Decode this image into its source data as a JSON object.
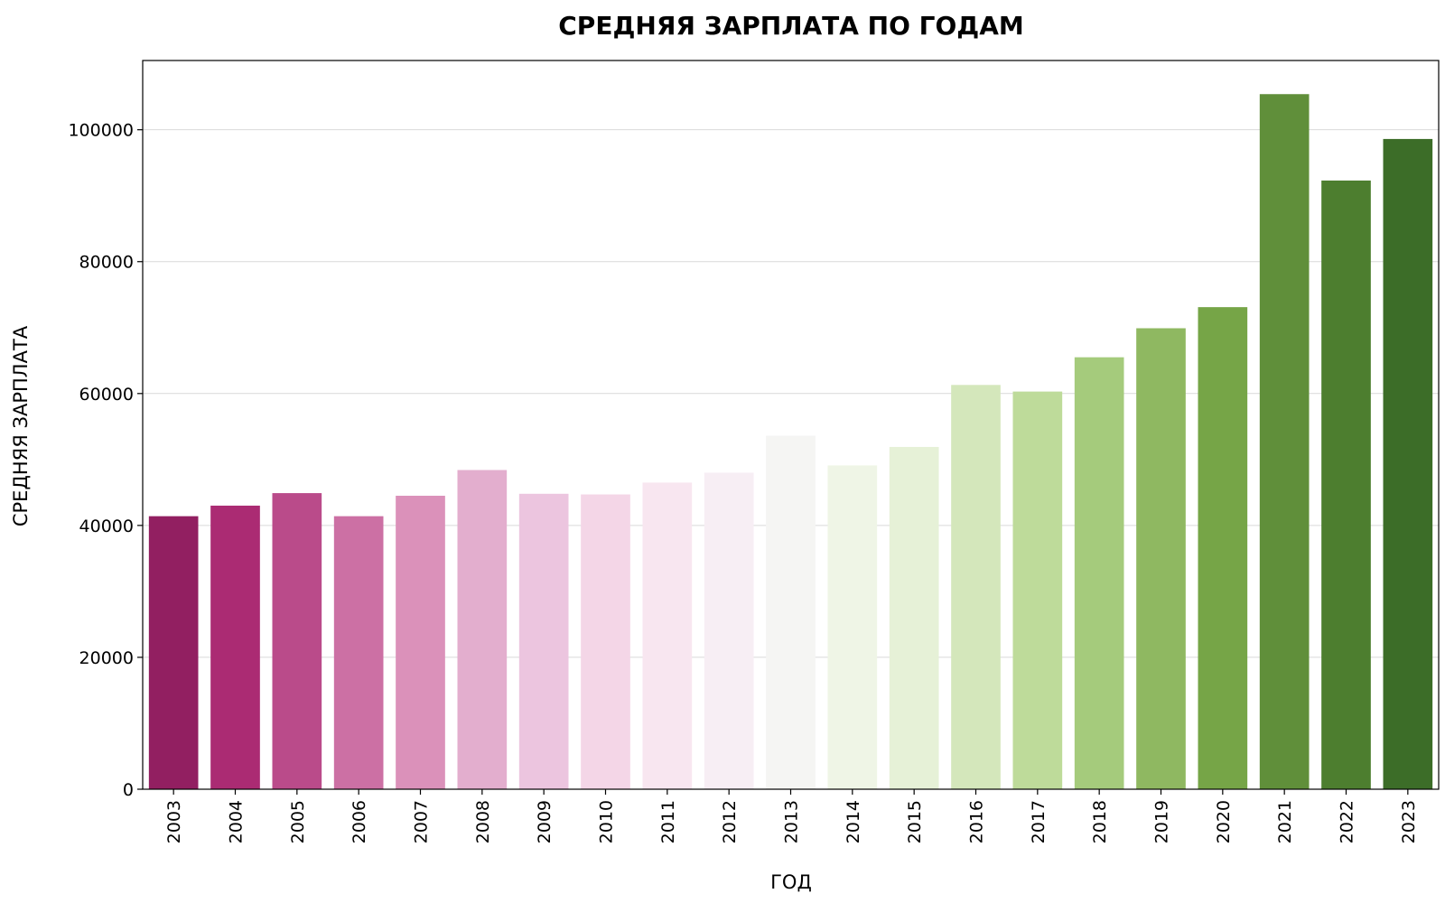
{
  "chart_data": {
    "type": "bar",
    "title": "СРЕДНЯЯ ЗАРПЛАТА ПО ГОДАМ",
    "xlabel": "ГОД",
    "ylabel": "СРЕДНЯЯ ЗАРПЛАТА",
    "categories": [
      "2003",
      "2004",
      "2005",
      "2006",
      "2007",
      "2008",
      "2009",
      "2010",
      "2011",
      "2012",
      "2013",
      "2014",
      "2015",
      "2016",
      "2017",
      "2018",
      "2019",
      "2020",
      "2021",
      "2022",
      "2023"
    ],
    "values": [
      41400,
      43000,
      44900,
      41400,
      44500,
      48400,
      44800,
      44700,
      46500,
      48000,
      53600,
      49100,
      51900,
      61300,
      60300,
      65500,
      69900,
      73100,
      105400,
      92300,
      98600
    ],
    "colors": [
      "#921f61",
      "#ab2b73",
      "#ba4b8a",
      "#cc70a4",
      "#db91ba",
      "#e3aece",
      "#ecc5df",
      "#f4d6e7",
      "#f8e6f0",
      "#f7eef4",
      "#f5f5f3",
      "#eff5e6",
      "#e6f1d7",
      "#d4e7bb",
      "#bedb9a",
      "#a5cb7c",
      "#8fb861",
      "#76a547",
      "#608f3a",
      "#4d7e2f",
      "#3c6d28"
    ],
    "yticks": [
      0,
      20000,
      40000,
      60000,
      80000,
      100000
    ],
    "ylim": [
      0,
      110500
    ],
    "grid": "horizontal",
    "legend": "none"
  }
}
